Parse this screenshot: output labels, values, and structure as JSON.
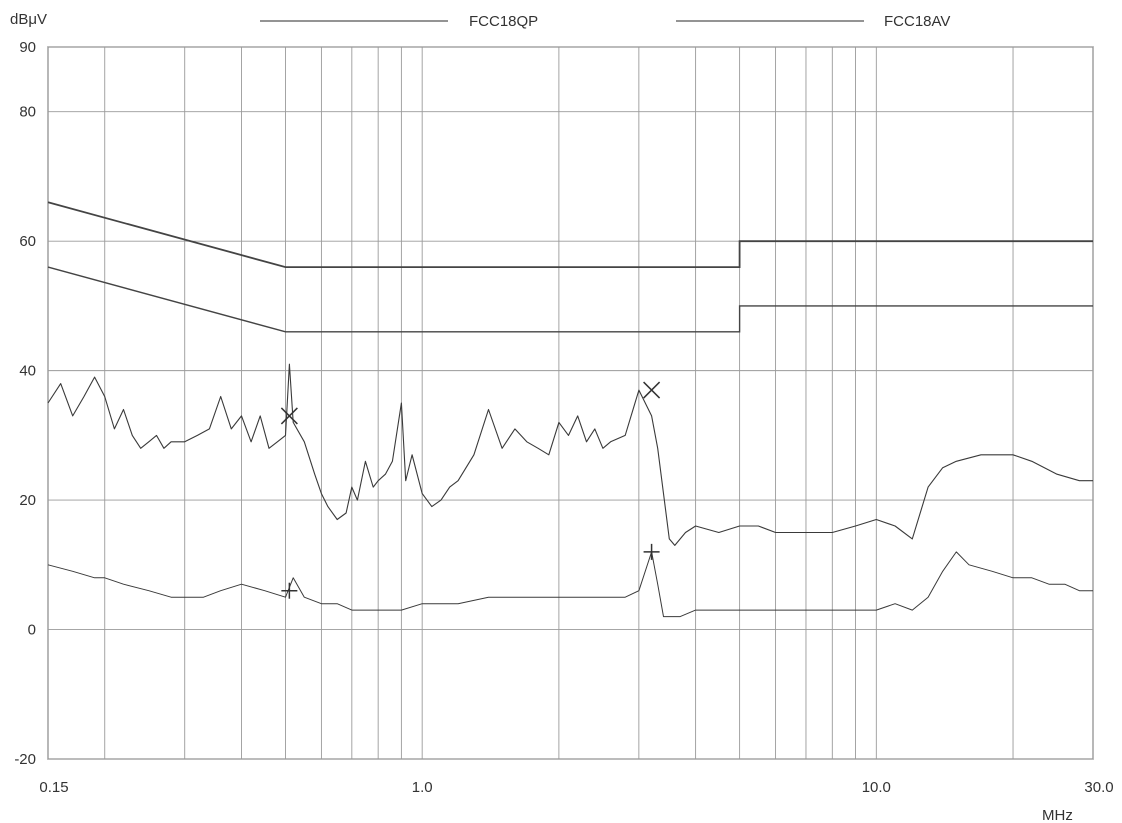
{
  "chart_data": {
    "type": "line",
    "ylabel": "dBμV",
    "xlabel": "MHz",
    "x_scale": "log",
    "xlim": [
      0.15,
      30.0
    ],
    "ylim": [
      -20,
      90
    ],
    "x_ticks": [
      0.15,
      1.0,
      10.0,
      30.0
    ],
    "x_tick_labels": [
      "0.15",
      "1.0",
      "10.0",
      "30.0"
    ],
    "y_ticks": [
      -20,
      0,
      20,
      40,
      60,
      80,
      90
    ],
    "y_tick_labels": [
      "-20",
      "0",
      "20",
      "40",
      "60",
      "80",
      "90"
    ],
    "x_gridlines": [
      0.15,
      0.2,
      0.3,
      0.4,
      0.5,
      0.6,
      0.7,
      0.8,
      0.9,
      1.0,
      2.0,
      3.0,
      4.0,
      5.0,
      6.0,
      7.0,
      8.0,
      9.0,
      10.0,
      20.0,
      30.0
    ],
    "y_gridlines": [
      -20,
      0,
      20,
      40,
      60,
      80,
      90
    ],
    "grid": true,
    "legend_position": "top",
    "limit_lines": [
      {
        "name": "FCC18QP",
        "points": [
          [
            0.15,
            66
          ],
          [
            0.5,
            56
          ],
          [
            5.0,
            56
          ],
          [
            5.0,
            60
          ],
          [
            30.0,
            60
          ]
        ]
      },
      {
        "name": "FCC18AV",
        "points": [
          [
            0.15,
            56
          ],
          [
            0.5,
            46
          ],
          [
            5.0,
            46
          ],
          [
            5.0,
            50
          ],
          [
            30.0,
            50
          ]
        ]
      }
    ],
    "series": [
      {
        "name": "",
        "x": [
          0.15,
          0.16,
          0.17,
          0.18,
          0.19,
          0.2,
          0.21,
          0.22,
          0.23,
          0.24,
          0.25,
          0.26,
          0.27,
          0.28,
          0.3,
          0.32,
          0.34,
          0.36,
          0.38,
          0.4,
          0.42,
          0.44,
          0.46,
          0.48,
          0.5,
          0.51,
          0.52,
          0.55,
          0.58,
          0.6,
          0.62,
          0.65,
          0.68,
          0.7,
          0.72,
          0.75,
          0.78,
          0.8,
          0.83,
          0.86,
          0.9,
          0.92,
          0.95,
          1.0,
          1.05,
          1.1,
          1.15,
          1.2,
          1.3,
          1.4,
          1.5,
          1.6,
          1.7,
          1.8,
          1.9,
          2.0,
          2.1,
          2.2,
          2.3,
          2.4,
          2.5,
          2.6,
          2.8,
          3.0,
          3.2,
          3.3,
          3.4,
          3.5,
          3.6,
          3.7,
          3.8,
          4.0,
          4.5,
          5.0,
          5.5,
          6.0,
          7.0,
          8.0,
          9.0,
          10.0,
          11.0,
          12.0,
          13.0,
          14.0,
          15.0,
          17.0,
          20.0,
          22.0,
          25.0,
          28.0,
          30.0
        ],
        "y": [
          35,
          38,
          33,
          36,
          39,
          36,
          31,
          34,
          30,
          28,
          29,
          30,
          28,
          29,
          29,
          30,
          31,
          36,
          31,
          33,
          29,
          33,
          28,
          29,
          30,
          41,
          32,
          29,
          24,
          21,
          19,
          17,
          18,
          22,
          20,
          26,
          22,
          23,
          24,
          26,
          35,
          23,
          27,
          21,
          19,
          20,
          22,
          23,
          27,
          34,
          28,
          31,
          29,
          28,
          27,
          32,
          30,
          33,
          29,
          31,
          28,
          29,
          30,
          37,
          33,
          28,
          21,
          14,
          13,
          14,
          15,
          16,
          15,
          16,
          16,
          15,
          15,
          15,
          16,
          17,
          16,
          14,
          22,
          25,
          26,
          27,
          27,
          26,
          24,
          23,
          23
        ]
      },
      {
        "name": "",
        "x": [
          0.15,
          0.17,
          0.19,
          0.2,
          0.22,
          0.25,
          0.28,
          0.3,
          0.33,
          0.36,
          0.4,
          0.45,
          0.5,
          0.52,
          0.55,
          0.6,
          0.65,
          0.7,
          0.75,
          0.8,
          0.9,
          1.0,
          1.1,
          1.2,
          1.4,
          1.6,
          1.8,
          2.0,
          2.2,
          2.5,
          2.8,
          3.0,
          3.2,
          3.3,
          3.4,
          3.5,
          3.7,
          4.0,
          5.0,
          6.0,
          7.0,
          8.0,
          9.0,
          10.0,
          11.0,
          12.0,
          13.0,
          14.0,
          15.0,
          16.0,
          18.0,
          20.0,
          22.0,
          24.0,
          26.0,
          28.0,
          30.0
        ],
        "y": [
          10,
          9,
          8,
          8,
          7,
          6,
          5,
          5,
          5,
          6,
          7,
          6,
          5,
          8,
          5,
          4,
          4,
          3,
          3,
          3,
          3,
          4,
          4,
          4,
          5,
          5,
          5,
          5,
          5,
          5,
          5,
          6,
          12,
          7,
          2,
          2,
          2,
          3,
          3,
          3,
          3,
          3,
          3,
          3,
          4,
          3,
          5,
          9,
          12,
          10,
          9,
          8,
          8,
          7,
          7,
          6,
          6
        ]
      }
    ],
    "markers": [
      {
        "type": "x",
        "x": 0.51,
        "y": 33
      },
      {
        "type": "x",
        "x": 3.2,
        "y": 37
      },
      {
        "type": "plus",
        "x": 0.51,
        "y": 6
      },
      {
        "type": "plus",
        "x": 3.2,
        "y": 12
      }
    ]
  }
}
